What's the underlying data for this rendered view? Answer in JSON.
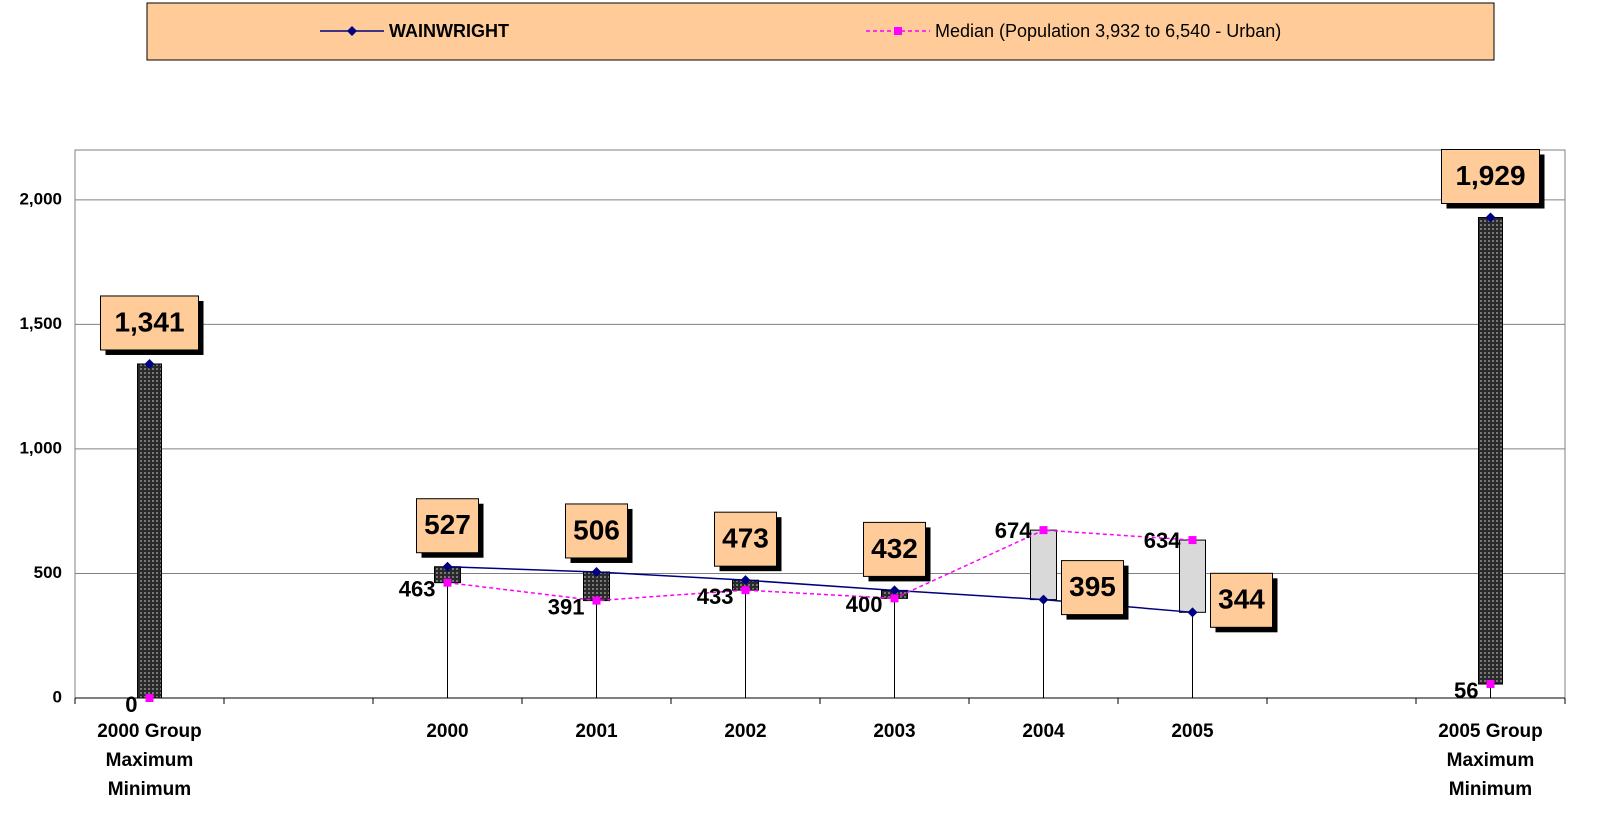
{
  "chart_data": {
    "type": "line",
    "categories": [
      "2000 Group\nMaximum\nMinimum",
      null,
      "2000",
      "2001",
      "2002",
      "2003",
      "2004",
      "2005",
      null,
      "2005 Group\nMaximum\nMinimum"
    ],
    "series": [
      {
        "name": "WAINWRIGHT",
        "color": "#000080",
        "values": [
          1341,
          null,
          527,
          506,
          473,
          432,
          395,
          344,
          null,
          1929
        ],
        "value_labels": [
          "1,341",
          null,
          "527",
          "506",
          "473",
          "432",
          "395",
          "344",
          null,
          "1,929"
        ]
      },
      {
        "name": "Median (Population 3,932 to 6,540 - Urban)",
        "color": "#ff00ff",
        "values": [
          0,
          null,
          463,
          391,
          433,
          400,
          674,
          634,
          null,
          56
        ]
      }
    ],
    "ylim": [
      0,
      2200
    ],
    "yticks": [
      0,
      500,
      {
        "value": 1000,
        "label": "1,000"
      },
      {
        "value": 1500,
        "label": "1,500"
      },
      {
        "value": 2000,
        "label": "2,000"
      }
    ],
    "grid": true
  }
}
